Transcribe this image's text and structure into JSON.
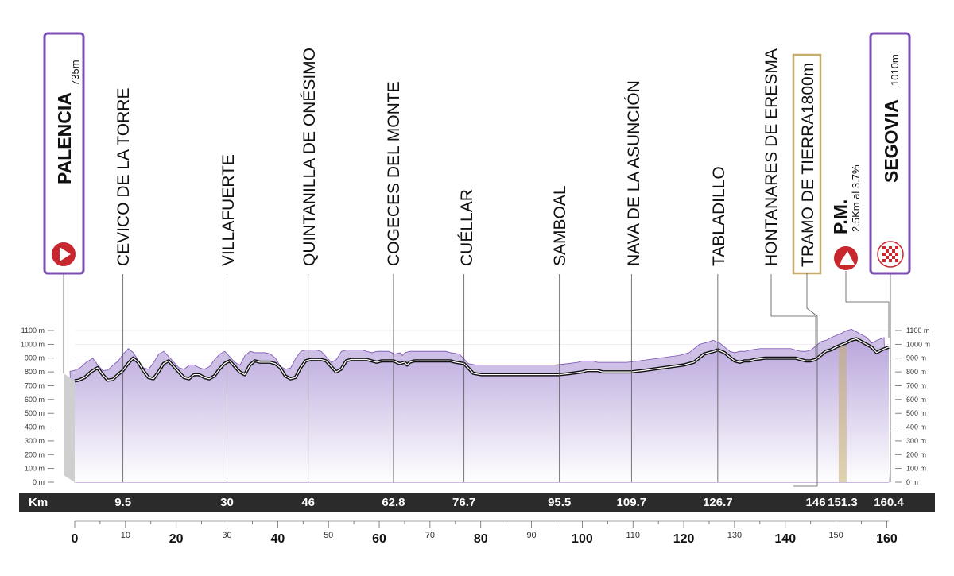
{
  "colors": {
    "purple": "#7a4fb0",
    "purple_light": "#cdbfe6",
    "purple_fill_top": "#b9a6dc",
    "purple_fill_bottom": "#ffffff",
    "gold": "#c5ad6e",
    "kmbar_bg": "#2b2b2b",
    "kmbar_gold": "#d9c27a",
    "start_red": "#c8272d"
  },
  "icons": {
    "start": "play-arrow-icon",
    "finish": "checkered-flag-icon",
    "climb": "mountain-cat4-icon"
  },
  "start": {
    "name": "PALENCIA",
    "altitude": "735m"
  },
  "finish": {
    "name": "SEGOVIA",
    "altitude": "1010m"
  },
  "mountain_pass": {
    "label": "P.M.",
    "detail": "2.5Km al 3.7%",
    "category": "4",
    "km": 151.3
  },
  "gravel": {
    "label": "TRAMO DE TIERRA",
    "length": "1800m"
  },
  "kmbar_label": "Km",
  "chart_data": {
    "type": "area",
    "xlabel": "",
    "ylabel": "",
    "xlim": [
      0,
      160.4
    ],
    "ylim": [
      0,
      1100
    ],
    "y_ticks": [
      "0 m",
      "100 m",
      "200 m",
      "300 m",
      "400 m",
      "500 m",
      "600 m",
      "700 m",
      "800 m",
      "900 m",
      "1000 m",
      "1100 m"
    ],
    "x_major_ticks": [
      "0",
      "20",
      "40",
      "60",
      "80",
      "100",
      "120",
      "140",
      "160"
    ],
    "x_minor_ticks": [
      "10",
      "30",
      "50",
      "70",
      "90",
      "110",
      "130",
      "150"
    ],
    "profile": {
      "km": [
        0,
        0.8,
        2,
        3.2,
        4.5,
        5.5,
        6.5,
        7.5,
        8.5,
        9.5,
        10.5,
        11.5,
        12.5,
        13.5,
        14.5,
        15.5,
        16.5,
        17.5,
        18.5,
        19.5,
        20.5,
        21.5,
        22.5,
        23.5,
        24.5,
        25.5,
        26.5,
        27.5,
        28.5,
        29.5,
        30.5,
        31.5,
        32.5,
        33.5,
        34.5,
        35.5,
        36.5,
        37.5,
        38.5,
        39.5,
        40.5,
        41.5,
        42.5,
        43.5,
        44.5,
        45.5,
        46.5,
        47.5,
        48.5,
        49.5,
        50.5,
        51.5,
        52.5,
        53.5,
        54.5,
        55.5,
        56.5,
        57.5,
        58.5,
        59.5,
        60.5,
        61.5,
        62.8,
        64,
        65,
        65.5,
        66,
        67,
        68,
        70,
        72,
        74,
        75,
        76.7,
        77.5,
        78.5,
        80,
        83,
        86,
        89,
        92,
        95.5,
        98,
        100,
        101,
        102,
        103,
        104,
        105,
        107,
        109.7,
        112,
        114,
        116,
        118,
        120,
        121,
        122,
        123,
        124,
        125,
        126,
        126.7,
        128,
        129,
        130,
        131,
        132,
        133,
        134,
        136,
        138,
        140,
        142,
        143,
        144,
        145,
        146,
        147,
        148,
        149,
        150,
        151.3,
        152,
        153,
        154,
        155,
        156,
        157,
        158,
        159,
        160.4
      ],
      "elevation": [
        735,
        740,
        760,
        800,
        830,
        780,
        740,
        745,
        780,
        810,
        860,
        900,
        870,
        810,
        760,
        750,
        800,
        860,
        880,
        840,
        800,
        760,
        750,
        780,
        780,
        760,
        750,
        770,
        820,
        860,
        880,
        840,
        800,
        780,
        850,
        880,
        870,
        870,
        870,
        860,
        830,
        770,
        750,
        760,
        830,
        880,
        890,
        890,
        890,
        880,
        840,
        800,
        820,
        880,
        890,
        890,
        890,
        890,
        880,
        870,
        880,
        880,
        880,
        860,
        870,
        850,
        870,
        880,
        880,
        880,
        880,
        880,
        870,
        860,
        830,
        790,
        780,
        780,
        780,
        780,
        780,
        780,
        790,
        800,
        810,
        810,
        810,
        800,
        800,
        800,
        800,
        810,
        820,
        830,
        840,
        850,
        860,
        870,
        900,
        930,
        940,
        950,
        960,
        940,
        910,
        880,
        870,
        880,
        880,
        890,
        900,
        900,
        900,
        900,
        890,
        880,
        880,
        890,
        920,
        950,
        960,
        980,
        1000,
        1010,
        1030,
        1040,
        1020,
        1000,
        980,
        940,
        960,
        980,
        1010
      ]
    },
    "towns": [
      {
        "name": "PALENCIA",
        "km": 0
      },
      {
        "name": "CEVICO DE LA TORRE",
        "km": 9.5
      },
      {
        "name": "VILLAFUERTE",
        "km": 30
      },
      {
        "name": "QUINTANILLA DE ONÉSIMO",
        "km": 46
      },
      {
        "name": "COGECES DEL MONTE",
        "km": 62.8
      },
      {
        "name": "CUÉLLAR",
        "km": 76.7
      },
      {
        "name": "SAMBOAL",
        "km": 95.5
      },
      {
        "name": "NAVA DE LA ASUNCIÓN",
        "km": 109.7
      },
      {
        "name": "TABLADILLO",
        "km": 126.7
      },
      {
        "name": "HONTANARES DE ERESMA",
        "km": 146
      },
      {
        "name": "TRAMO DE TIERRA",
        "km": 151.3
      },
      {
        "name": "SEGOVIA",
        "km": 160.4
      }
    ],
    "km_markers": [
      "9.5",
      "30",
      "46",
      "62.8",
      "76.7",
      "95.5",
      "109.7",
      "126.7",
      "146",
      "151.3",
      "160.4"
    ]
  }
}
